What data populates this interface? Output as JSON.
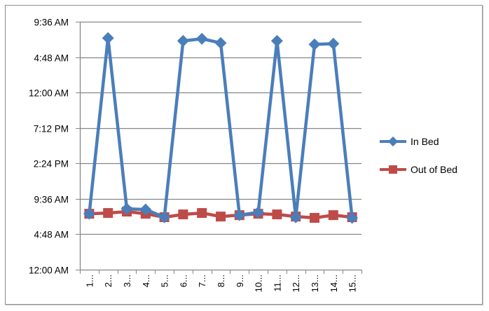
{
  "chart_data": {
    "type": "line",
    "title": "",
    "xlabel": "",
    "ylabel": "",
    "categories": [
      "1...",
      "2...",
      "3...",
      "4...",
      "5...",
      "6...",
      "7...",
      "8...",
      "9...",
      "10...",
      "11...",
      "12...",
      "13...",
      "14...",
      "15..."
    ],
    "y_tick_labels": [
      "12:00 AM",
      "4:48 AM",
      "9:36 AM",
      "2:24 PM",
      "7:12 PM",
      "12:00 AM",
      "4:48 AM",
      "9:36 AM"
    ],
    "y_tick_hours": [
      0,
      4.8,
      9.6,
      14.4,
      19.2,
      24,
      28.8,
      33.6
    ],
    "ylim_hours": [
      0,
      33.6
    ],
    "grid": true,
    "legend_position": "right",
    "series": [
      {
        "name": "In Bed",
        "color": "#4a7ebb",
        "marker": "diamond",
        "values_hours": [
          7.58,
          31.38,
          8.25,
          8.15,
          7.11,
          31.0,
          31.29,
          30.72,
          7.39,
          7.77,
          31.0,
          7.11,
          30.53,
          30.62,
          7.02
        ],
        "values_time": [
          "7:35 AM",
          "7:23 AM (+1 day)",
          "8:15 AM",
          "8:09 AM",
          "7:07 AM",
          "7:00 AM (+1 day)",
          "7:17 AM (+1 day)",
          "6:43 AM (+1 day)",
          "7:24 AM",
          "7:46 AM",
          "7:00 AM (+1 day)",
          "7:07 AM",
          "6:32 AM (+1 day)",
          "6:37 AM (+1 day)",
          "7:01 AM"
        ]
      },
      {
        "name": "Out of Bed",
        "color": "#be4b48",
        "marker": "square",
        "values_hours": [
          7.58,
          7.68,
          7.87,
          7.58,
          7.11,
          7.49,
          7.68,
          7.2,
          7.39,
          7.58,
          7.49,
          7.2,
          7.02,
          7.39,
          7.11
        ],
        "values_time": [
          "7:35 AM",
          "7:41 AM",
          "7:52 AM",
          "7:35 AM",
          "7:07 AM",
          "7:29 AM",
          "7:41 AM",
          "7:12 AM",
          "7:24 AM",
          "7:35 AM",
          "7:29 AM",
          "7:12 AM",
          "7:01 AM",
          "7:24 AM",
          "7:07 AM"
        ]
      }
    ]
  },
  "legend": {
    "items": [
      {
        "label": "In Bed",
        "color": "#4a7ebb"
      },
      {
        "label": "Out of Bed",
        "color": "#be4b48"
      }
    ]
  },
  "colors": {
    "grid": "#868686",
    "axis": "#868686",
    "border": "#8c8c8c"
  }
}
